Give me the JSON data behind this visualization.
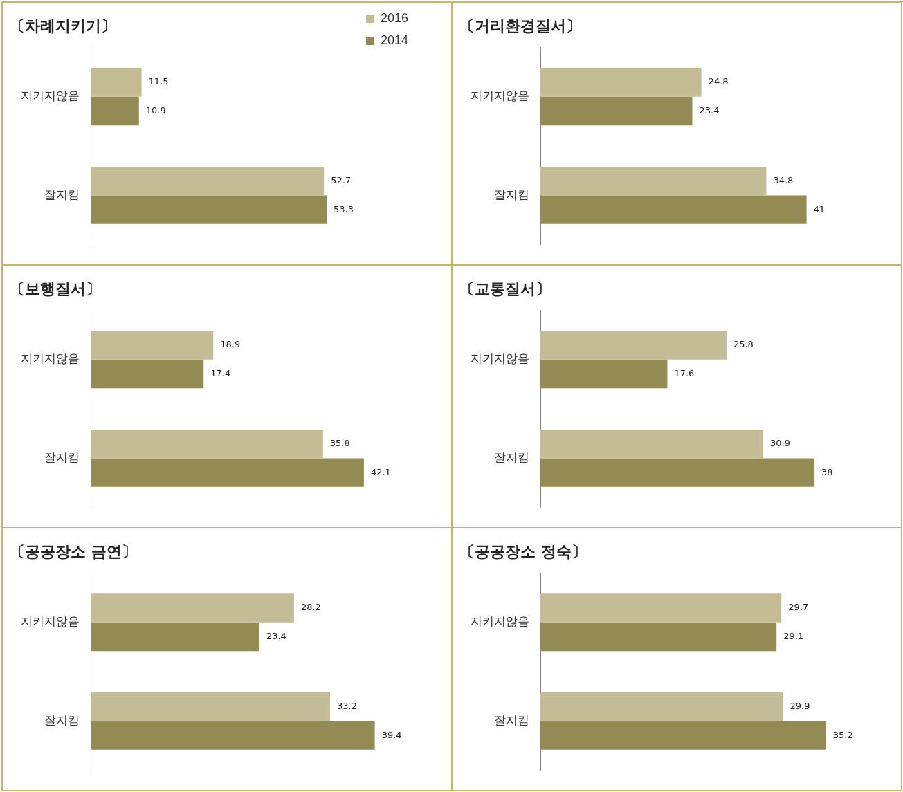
{
  "chart_data": [
    {
      "type": "bar",
      "orientation": "horizontal",
      "title": "〔차례지키기〕",
      "categories": [
        "지키지않음",
        "잘지킴"
      ],
      "series": [
        {
          "name": "2016",
          "color": "#c4bc96",
          "values": [
            11.5,
            52.7
          ]
        },
        {
          "name": "2014",
          "color": "#948a54",
          "values": [
            10.9,
            53.3
          ]
        }
      ],
      "tick_labels": "y",
      "data_labels": true,
      "legend": "top right"
    },
    {
      "type": "bar",
      "orientation": "horizontal",
      "title": "〔거리환경질서〕",
      "categories": [
        "지키지않음",
        "잘지킴"
      ],
      "series": [
        {
          "color": "#c4bc96",
          "values": [
            24.8,
            34.8
          ]
        },
        {
          "color": "#948a54",
          "values": [
            23.4,
            41
          ]
        }
      ],
      "tick_labels": "y",
      "data_labels": true
    },
    {
      "type": "bar",
      "orientation": "horizontal",
      "title": "〔보행질서〕",
      "categories": [
        "지키지않음",
        "잘지킴"
      ],
      "series": [
        {
          "color": "#c4bc96",
          "values": [
            18.9,
            35.8
          ]
        },
        {
          "color": "#948a54",
          "values": [
            17.4,
            42.1
          ]
        }
      ],
      "tick_labels": "y",
      "data_labels": true
    },
    {
      "type": "bar",
      "orientation": "horizontal",
      "title": "〔교통질서〕",
      "categories": [
        "지키지않음",
        "잘지킴"
      ],
      "series": [
        {
          "color": "#c4bc96",
          "values": [
            25.8,
            30.9
          ]
        },
        {
          "color": "#948a54",
          "values": [
            17.6,
            38
          ]
        }
      ],
      "tick_labels": "y",
      "data_labels": true
    },
    {
      "type": "bar",
      "orientation": "horizontal",
      "title": "〔공공장소 금연〕",
      "categories": [
        "지키지않음",
        "잘지킴"
      ],
      "series": [
        {
          "color": "#c4bc96",
          "values": [
            28.2,
            33.2
          ]
        },
        {
          "color": "#948a54",
          "values": [
            23.4,
            39.4
          ]
        }
      ],
      "tick_labels": "y",
      "data_labels": true
    },
    {
      "type": "bar",
      "orientation": "horizontal",
      "title": "〔공공장소 정숙〕",
      "categories": [
        "지키지않음",
        "잘지킴"
      ],
      "series": [
        {
          "color": "#c4bc96",
          "values": [
            29.7,
            29.9
          ]
        },
        {
          "color": "#948a54",
          "values": [
            29.1,
            35.2
          ]
        }
      ],
      "tick_labels": "y",
      "data_labels": true
    }
  ]
}
